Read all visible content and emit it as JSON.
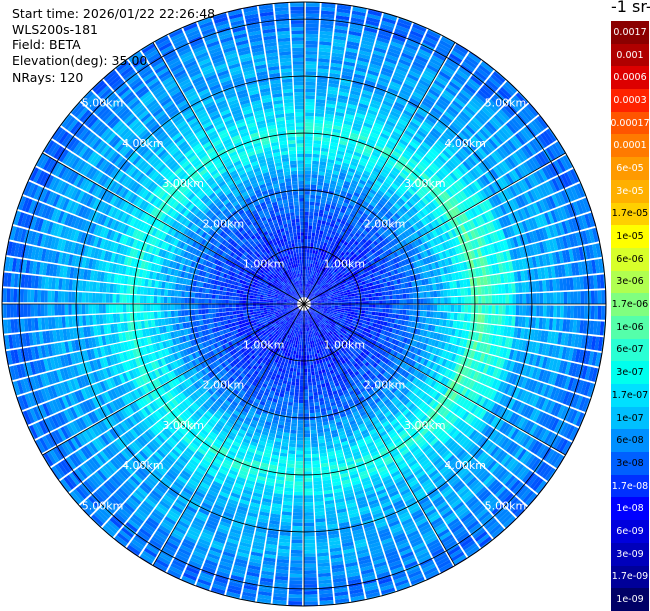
{
  "header": {
    "start_time": "Start time: 2026/01/22 22:26:48",
    "instrument": "WLS200s-181",
    "field": "Field: BETA",
    "elevation": "Elevation(deg): 35.00",
    "nrays": "NRays: 120",
    "unit_label": "-1 sr-"
  },
  "colorbar": [
    {
      "label": "0.0017",
      "color": "#8b0000",
      "text": "#ffffff"
    },
    {
      "label": "0.001",
      "color": "#b00000",
      "text": "#ffffff"
    },
    {
      "label": "0.0006",
      "color": "#dd0000",
      "text": "#ffffff"
    },
    {
      "label": "0.0003",
      "color": "#ff2200",
      "text": "#ffffff"
    },
    {
      "label": "0.00017",
      "color": "#ff5500",
      "text": "#ffffff"
    },
    {
      "label": "0.0001",
      "color": "#ff7a00",
      "text": "#ffffff"
    },
    {
      "label": "6e-05",
      "color": "#ff9a00",
      "text": "#ffffff"
    },
    {
      "label": "3e-05",
      "color": "#ffb000",
      "text": "#ffffff"
    },
    {
      "label": "1.7e-05",
      "color": "#ffd000",
      "text": "#000000"
    },
    {
      "label": "1e-05",
      "color": "#ffff00",
      "text": "#000000"
    },
    {
      "label": "6e-06",
      "color": "#d8ff2a",
      "text": "#000000"
    },
    {
      "label": "3e-06",
      "color": "#b0ff50",
      "text": "#000000"
    },
    {
      "label": "1.7e-06",
      "color": "#80ff80",
      "text": "#000000"
    },
    {
      "label": "1e-06",
      "color": "#55ffaa",
      "text": "#000000"
    },
    {
      "label": "6e-07",
      "color": "#2affd4",
      "text": "#000000"
    },
    {
      "label": "3e-07",
      "color": "#00ffee",
      "text": "#000000"
    },
    {
      "label": "1.7e-07",
      "color": "#00e0ff",
      "text": "#000000"
    },
    {
      "label": "1e-07",
      "color": "#00c0ff",
      "text": "#000000"
    },
    {
      "label": "6e-08",
      "color": "#0090ff",
      "text": "#000000"
    },
    {
      "label": "3e-08",
      "color": "#0060ff",
      "text": "#000000"
    },
    {
      "label": "1.7e-08",
      "color": "#0030ff",
      "text": "#ffffff"
    },
    {
      "label": "1e-08",
      "color": "#0000ff",
      "text": "#ffffff"
    },
    {
      "label": "6e-09",
      "color": "#0000dd",
      "text": "#ffffff"
    },
    {
      "label": "3e-09",
      "color": "#0000bb",
      "text": "#ffffff"
    },
    {
      "label": "1.7e-09",
      "color": "#000099",
      "text": "#ffffff"
    },
    {
      "label": "1e-09",
      "color": "#000066",
      "text": "#ffffff"
    }
  ],
  "chart_data": {
    "type": "heatmap",
    "projection": "polar PPI",
    "field": "BETA",
    "elevation_deg": 35.0,
    "n_rays": 120,
    "range_rings_km": [
      1.0,
      2.0,
      3.0,
      4.0,
      5.0
    ],
    "ring_labels": [
      "1.00km",
      "2.00km",
      "3.00km",
      "4.00km",
      "5.00km"
    ],
    "max_range_km": 5.3,
    "spokes_deg": [
      0,
      30,
      60,
      90,
      120,
      150,
      180,
      210,
      240,
      270,
      300,
      330
    ],
    "grid": true,
    "colormap": "jet",
    "scale": "log",
    "value_range": [
      1e-09,
      0.0017
    ],
    "radial_profile": {
      "range_km": [
        0.0,
        1.0,
        1.5,
        2.0,
        2.5,
        3.0,
        3.5,
        4.0,
        4.5,
        5.0,
        5.3
      ],
      "typical_value": [
        1e-08,
        1e-08,
        1.7e-08,
        3e-08,
        1e-07,
        3e-07,
        1e-07,
        6e-08,
        6e-08,
        3e-08,
        3e-08
      ]
    },
    "notes_visible": "bright ring (~1e-07 to 1e-06) near 3.0-3.5 km, strongest on east side"
  }
}
